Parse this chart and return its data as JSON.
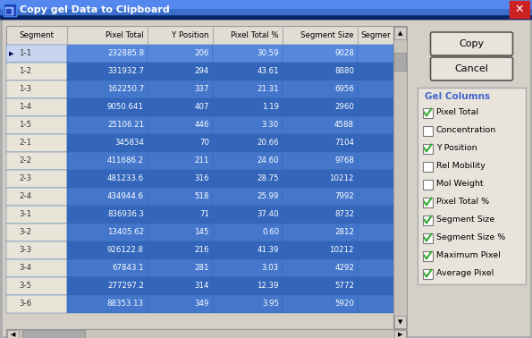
{
  "title": "Copy gel Data to Clipboard",
  "window_bg": "#d4d0c8",
  "columns": [
    "Segment",
    "Pixel Total",
    "Y Position",
    "Pixel Total %",
    "Segment Size",
    "Segmer"
  ],
  "rows": [
    [
      "1-1",
      "232885.8",
      "206",
      "30.59",
      "9028",
      ""
    ],
    [
      "1-2",
      "331932.7",
      "294",
      "43.61",
      "8880",
      ""
    ],
    [
      "1-3",
      "162250.7",
      "337",
      "21.31",
      "6956",
      ""
    ],
    [
      "1-4",
      "9050.641",
      "407",
      "1.19",
      "2960",
      ""
    ],
    [
      "1-5",
      "25106.21",
      "446",
      "3.30",
      "4588",
      ""
    ],
    [
      "2-1",
      "345834",
      "70",
      "20.66",
      "7104",
      ""
    ],
    [
      "2-2",
      "411686.2",
      "211",
      "24.60",
      "9768",
      ""
    ],
    [
      "2-3",
      "481233.6",
      "316",
      "28.75",
      "10212",
      ""
    ],
    [
      "2-4",
      "434944.6",
      "518",
      "25.99",
      "7992",
      ""
    ],
    [
      "3-1",
      "836936.3",
      "71",
      "37.40",
      "8732",
      ""
    ],
    [
      "3-2",
      "13405.62",
      "145",
      "0.60",
      "2812",
      ""
    ],
    [
      "3-3",
      "926122.8",
      "216",
      "41.39",
      "10212",
      ""
    ],
    [
      "3-4",
      "67843.1",
      "281",
      "3.03",
      "4292",
      ""
    ],
    [
      "3-5",
      "277297.2",
      "314",
      "12.39",
      "5772",
      ""
    ],
    [
      "3-6",
      "88353.13",
      "349",
      "3.95",
      "5920",
      ""
    ]
  ],
  "gel_columns_label": "Gel Columns",
  "gel_columns_label_color": "#4466cc",
  "checkboxes": [
    {
      "label": "Pixel Total",
      "checked": true
    },
    {
      "label": "Concentration",
      "checked": false
    },
    {
      "label": "Y Position",
      "checked": true
    },
    {
      "label": "Rel Mobility",
      "checked": false
    },
    {
      "label": "Mol Weight",
      "checked": false
    },
    {
      "label": "Pixel Total %",
      "checked": true
    },
    {
      "label": "Segment Size",
      "checked": true
    },
    {
      "label": "Segment Size %",
      "checked": true
    },
    {
      "label": "Maximum Pixel",
      "checked": true
    },
    {
      "label": "Average Pixel",
      "checked": true
    }
  ],
  "buttons": [
    "Copy",
    "Cancel"
  ],
  "selected_row": 0,
  "arrow_row": 0,
  "title_bar_color1": "#0a246a",
  "title_bar_color2": "#3a6fcc",
  "cell_blue": "#4477cc",
  "cell_blue_dark": "#3366bb",
  "segment_col_bg": "#e8e4d8",
  "header_bg": "#e0ddd5",
  "scrollbar_bg": "#c8c4bc",
  "check_color": "#33aa33"
}
